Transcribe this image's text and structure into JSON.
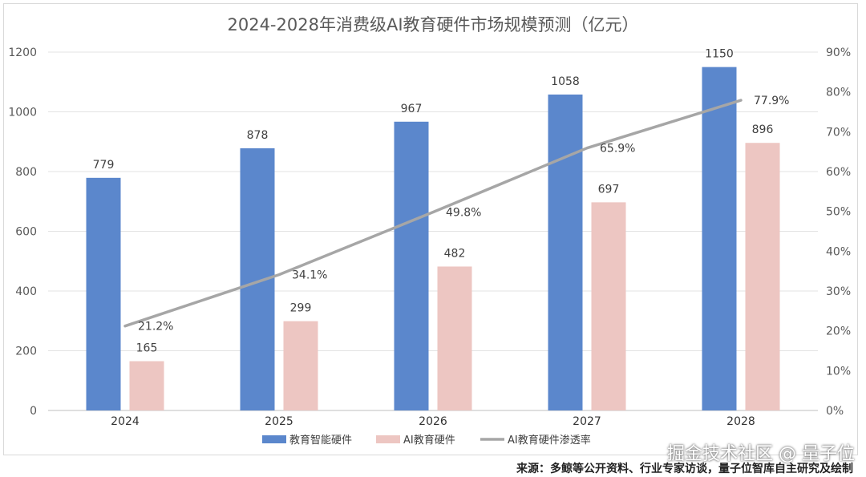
{
  "chart_data": {
    "type": "bar",
    "title": "2024-2028年消费级AI教育硬件市场规模预测（亿元）",
    "categories": [
      "2024",
      "2025",
      "2026",
      "2027",
      "2028"
    ],
    "series": [
      {
        "name": "教育智能硬件",
        "type": "bar",
        "values": [
          779,
          878,
          967,
          1058,
          1150
        ],
        "color": "#5b87cc"
      },
      {
        "name": "AI教育硬件",
        "type": "bar",
        "values": [
          165,
          299,
          482,
          697,
          896
        ],
        "color": "#edc6c2"
      },
      {
        "name": "AI教育硬件渗透率",
        "type": "line",
        "axis": "right",
        "values": [
          21.2,
          34.1,
          49.8,
          65.9,
          77.9
        ],
        "color": "#a6a6a6"
      }
    ],
    "ylim": [
      0,
      1200
    ],
    "yticks": [
      "0",
      "200",
      "400",
      "600",
      "800",
      "1000",
      "1200"
    ],
    "y2lim": [
      0,
      90
    ],
    "y2ticks": [
      "0%",
      "10%",
      "20%",
      "30%",
      "40%",
      "50%",
      "60%",
      "70%",
      "80%",
      "90%"
    ],
    "line_labels": [
      "21.2%",
      "34.1%",
      "49.8%",
      "65.9%",
      "77.9%"
    ],
    "grid": true,
    "legend_position": "bottom"
  },
  "footer": {
    "watermark": "掘金技术社区 @ 量子位",
    "source": "来源：多鲸等公开资料、行业专家访谈，量子位智库自主研究及绘制"
  }
}
